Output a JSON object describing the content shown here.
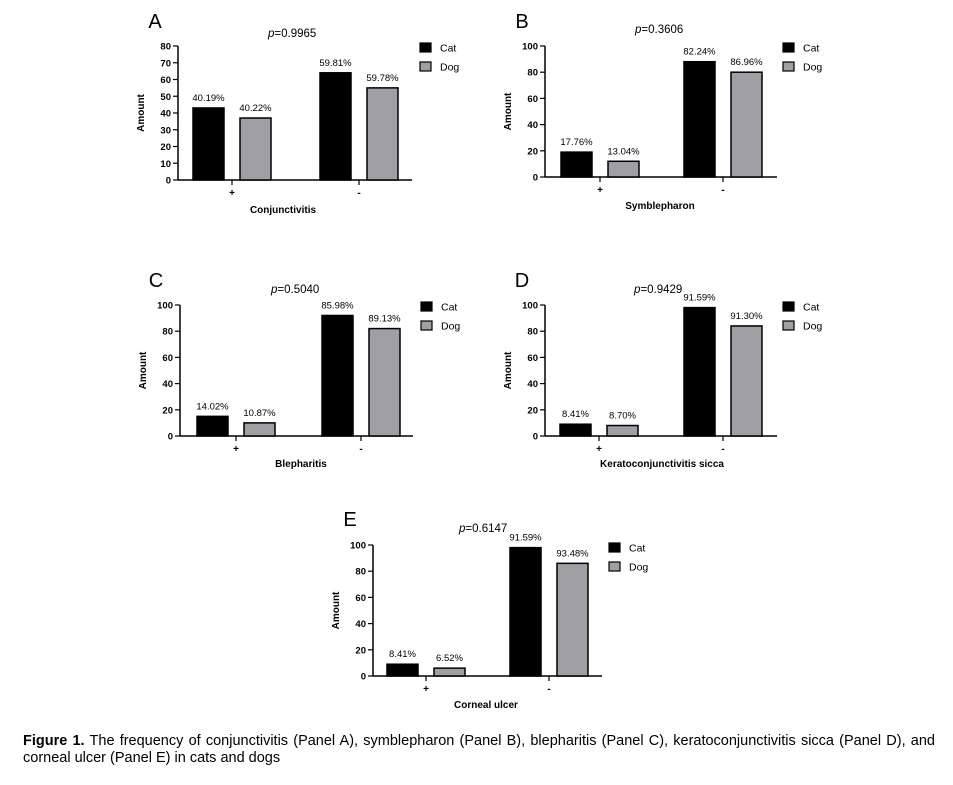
{
  "chart_data": [
    {
      "panel_letter": "A",
      "type": "bar",
      "p_prefix": "p",
      "p_value": "=0.9965",
      "categories": [
        "+",
        "-"
      ],
      "series": [
        {
          "name": "Cat",
          "color": "#000000",
          "values": [
            43,
            64
          ],
          "labels": [
            "40.19%",
            "59.81%"
          ]
        },
        {
          "name": "Dog",
          "color": "#a0a0a4",
          "values": [
            37,
            55
          ],
          "labels": [
            "40.22%",
            "59.78%"
          ]
        }
      ],
      "xlabel": "Conjunctivitis",
      "ylabel": "Amount",
      "ylim": [
        0,
        80
      ],
      "yticks": [
        0,
        10,
        20,
        30,
        40,
        50,
        60,
        70,
        80
      ],
      "legend": "right"
    },
    {
      "panel_letter": "B",
      "type": "bar",
      "p_prefix": "p",
      "p_value": "=0.3606",
      "categories": [
        "+",
        "-"
      ],
      "series": [
        {
          "name": "Cat",
          "color": "#000000",
          "values": [
            19,
            88
          ],
          "labels": [
            "17.76%",
            "82.24%"
          ]
        },
        {
          "name": "Dog",
          "color": "#a0a0a4",
          "values": [
            12,
            80
          ],
          "labels": [
            "13.04%",
            "86.96%"
          ]
        }
      ],
      "xlabel": "Symblepharon",
      "ylabel": "Amount",
      "ylim": [
        0,
        100
      ],
      "yticks": [
        0,
        20,
        40,
        60,
        80,
        100
      ],
      "legend": "right"
    },
    {
      "panel_letter": "C",
      "type": "bar",
      "p_prefix": "p",
      "p_value": "=0.5040",
      "categories": [
        "+",
        "-"
      ],
      "series": [
        {
          "name": "Cat",
          "color": "#000000",
          "values": [
            15,
            92
          ],
          "labels": [
            "14.02%",
            "85.98%"
          ]
        },
        {
          "name": "Dog",
          "color": "#a0a0a4",
          "values": [
            10,
            82
          ],
          "labels": [
            "10.87%",
            "89.13%"
          ]
        }
      ],
      "xlabel": "Blepharitis",
      "ylabel": "Amount",
      "ylim": [
        0,
        100
      ],
      "yticks": [
        0,
        20,
        40,
        60,
        80,
        100
      ],
      "legend": "right"
    },
    {
      "panel_letter": "D",
      "type": "bar",
      "p_prefix": "p",
      "p_value": "=0.9429",
      "categories": [
        "+",
        "-"
      ],
      "series": [
        {
          "name": "Cat",
          "color": "#000000",
          "values": [
            9,
            98
          ],
          "labels": [
            "8.41%",
            "91.59%"
          ]
        },
        {
          "name": "Dog",
          "color": "#a0a0a4",
          "values": [
            8,
            84
          ],
          "labels": [
            "8.70%",
            "91.30%"
          ]
        }
      ],
      "xlabel": "Keratoconjunctivitis sicca",
      "ylabel": "Amount",
      "ylim": [
        0,
        100
      ],
      "yticks": [
        0,
        20,
        40,
        60,
        80,
        100
      ],
      "legend": "right"
    },
    {
      "panel_letter": "E",
      "type": "bar",
      "p_prefix": "p",
      "p_value": "=0.6147",
      "categories": [
        "+",
        "-"
      ],
      "series": [
        {
          "name": "Cat",
          "color": "#000000",
          "values": [
            9,
            98
          ],
          "labels": [
            "8.41%",
            "91.59%"
          ]
        },
        {
          "name": "Dog",
          "color": "#a0a0a4",
          "values": [
            6,
            86
          ],
          "labels": [
            "6.52%",
            "93.48%"
          ]
        }
      ],
      "xlabel": "Corneal ulcer",
      "ylabel": "Amount",
      "ylim": [
        0,
        100
      ],
      "yticks": [
        0,
        20,
        40,
        60,
        80,
        100
      ],
      "legend": "right"
    }
  ],
  "caption": {
    "label": "Figure 1.",
    "text": " The frequency of conjunctivitis (Panel A), symblepharon (Panel B), blepharitis (Panel C), keratoconjunctivitis sicca (Panel D), and corneal ulcer (Panel E) in cats and dogs"
  }
}
